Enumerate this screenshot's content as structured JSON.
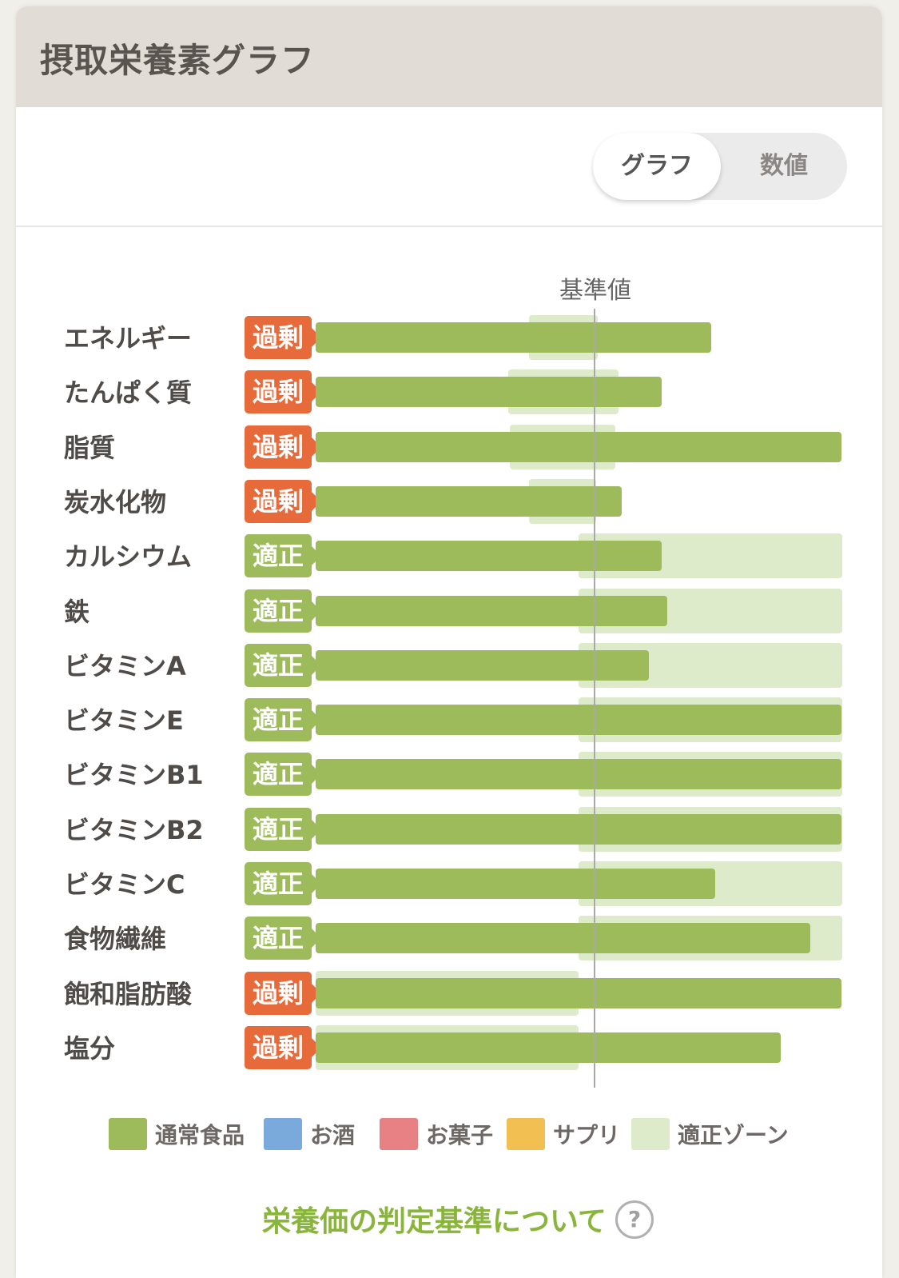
{
  "header": {
    "title": "摂取栄養素グラフ"
  },
  "toggle": {
    "graph_label": "グラフ",
    "numbers_label": "数値",
    "selected": "graph"
  },
  "baseline_label": "基準値",
  "colors": {
    "regular_food": "#9dbb5b",
    "alcohol": "#7aa9dc",
    "sweets": "#e88184",
    "supplements": "#f1bf52",
    "adequate_zone": "#deebcb",
    "excess_badge": "#e66a3a",
    "adequate_badge": "#9dbb5b"
  },
  "nutrients": [
    {
      "name": "エネルギー",
      "status": "過剰",
      "kind": "excess"
    },
    {
      "name": "たんぱく質",
      "status": "過剰",
      "kind": "excess"
    },
    {
      "name": "脂質",
      "status": "過剰",
      "kind": "excess"
    },
    {
      "name": "炭水化物",
      "status": "過剰",
      "kind": "excess"
    },
    {
      "name": "カルシウム",
      "status": "適正",
      "kind": "ok"
    },
    {
      "name": "鉄",
      "status": "適正",
      "kind": "ok"
    },
    {
      "name": "ビタミンA",
      "status": "適正",
      "kind": "ok"
    },
    {
      "name": "ビタミンE",
      "status": "適正",
      "kind": "ok"
    },
    {
      "name": "ビタミンB1",
      "status": "適正",
      "kind": "ok"
    },
    {
      "name": "ビタミンB2",
      "status": "適正",
      "kind": "ok"
    },
    {
      "name": "ビタミンC",
      "status": "適正",
      "kind": "ok"
    },
    {
      "name": "食物繊維",
      "status": "適正",
      "kind": "ok"
    },
    {
      "name": "飽和脂肪酸",
      "status": "過剰",
      "kind": "excess"
    },
    {
      "name": "塩分",
      "status": "過剰",
      "kind": "excess"
    }
  ],
  "legend": [
    {
      "label": "通常食品",
      "color": "#9dbb5b"
    },
    {
      "label": "お酒",
      "color": "#7aa9dc"
    },
    {
      "label": "お菓子",
      "color": "#e88184"
    },
    {
      "label": "サプリ",
      "color": "#f1bf52"
    },
    {
      "label": "適正ゾーン",
      "color": "#deebcb"
    }
  ],
  "footer_link": "栄養価の判定基準について",
  "help_icon": "question-circle-icon"
}
